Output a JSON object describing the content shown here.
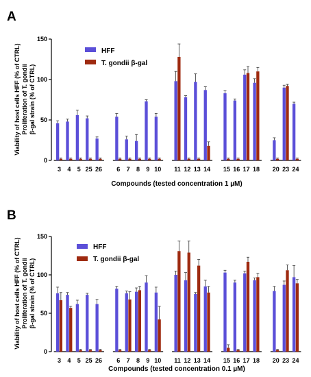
{
  "colors": {
    "hff": "#5b4fd8",
    "tgondii": "#9e2a10",
    "axis": "#000000"
  },
  "chart_data": [
    {
      "panel": "A",
      "type": "bar",
      "xlabel": "Compounds (tested concentration 1 µM)",
      "ylabel_lines": [
        "Viability of host cells HFF (% of CTRL)",
        "Proliferation of T. gondii",
        "β-gal strain (% of CTRL)"
      ],
      "ylim": [
        0,
        150
      ],
      "yticks": [
        0,
        50,
        100,
        150
      ],
      "legend": [
        "HFF",
        "T. gondii β-gal"
      ],
      "categories": [
        "3",
        "4",
        "5",
        "25",
        "26",
        "6",
        "7",
        "8",
        "9",
        "10",
        "11",
        "12",
        "13",
        "14",
        "15",
        "16",
        "17",
        "18",
        "20",
        "23",
        "24"
      ],
      "series": [
        {
          "name": "HFF",
          "values": [
            46,
            48,
            56,
            52,
            27,
            54,
            26,
            24,
            73,
            54,
            98,
            78,
            97,
            87,
            83,
            74,
            106,
            96,
            25,
            90,
            70
          ],
          "err": [
            3,
            3,
            6,
            3,
            2,
            4,
            4,
            8,
            2,
            4,
            12,
            2,
            10,
            4,
            3,
            2,
            6,
            5,
            3,
            3,
            2
          ]
        },
        {
          "name": "T. gondii β-gal",
          "values": [
            2,
            2,
            2,
            2,
            2,
            2,
            2,
            2,
            2,
            2,
            128,
            2,
            2,
            18,
            2,
            2,
            108,
            110,
            2,
            92,
            2
          ],
          "err": [
            1,
            1,
            1,
            1,
            1,
            1,
            1,
            1,
            1,
            1,
            16,
            1,
            1,
            5,
            1,
            1,
            8,
            5,
            1,
            2,
            1
          ]
        }
      ]
    },
    {
      "panel": "B",
      "type": "bar",
      "xlabel": "Compounds (tested concentration 0.1 µM)",
      "ylabel_lines": [
        "Viability of host cells HFF (% of CTRL)",
        "Proliferation of T. gondii",
        "β-gal strain (% of CTRL)"
      ],
      "ylim": [
        0,
        150
      ],
      "yticks": [
        0,
        50,
        100,
        150
      ],
      "legend": [
        "HFF",
        "T. gondii β-gal"
      ],
      "categories": [
        "3",
        "4",
        "5",
        "25",
        "26",
        "6",
        "7",
        "8",
        "9",
        "10",
        "11",
        "12",
        "13",
        "14",
        "15",
        "16",
        "17",
        "18",
        "20",
        "23",
        "24"
      ],
      "series": [
        {
          "name": "HFF",
          "values": [
            76,
            74,
            62,
            74,
            62,
            82,
            76,
            78,
            90,
            77,
            100,
            93,
            75,
            85,
            103,
            90,
            102,
            93,
            79,
            87,
            97
          ],
          "err": [
            8,
            3,
            5,
            2,
            6,
            3,
            3,
            5,
            9,
            7,
            5,
            10,
            2,
            8,
            3,
            3,
            3,
            3,
            6,
            5,
            15
          ]
        },
        {
          "name": "T. gondii β-gal",
          "values": [
            67,
            57,
            2,
            2,
            2,
            2,
            68,
            80,
            2,
            42,
            131,
            129,
            112,
            77,
            5,
            2,
            117,
            97,
            2,
            106,
            89
          ],
          "err": [
            10,
            2,
            1,
            1,
            1,
            1,
            10,
            5,
            1,
            17,
            13,
            15,
            8,
            8,
            4,
            1,
            6,
            5,
            1,
            7,
            5
          ]
        }
      ]
    }
  ]
}
